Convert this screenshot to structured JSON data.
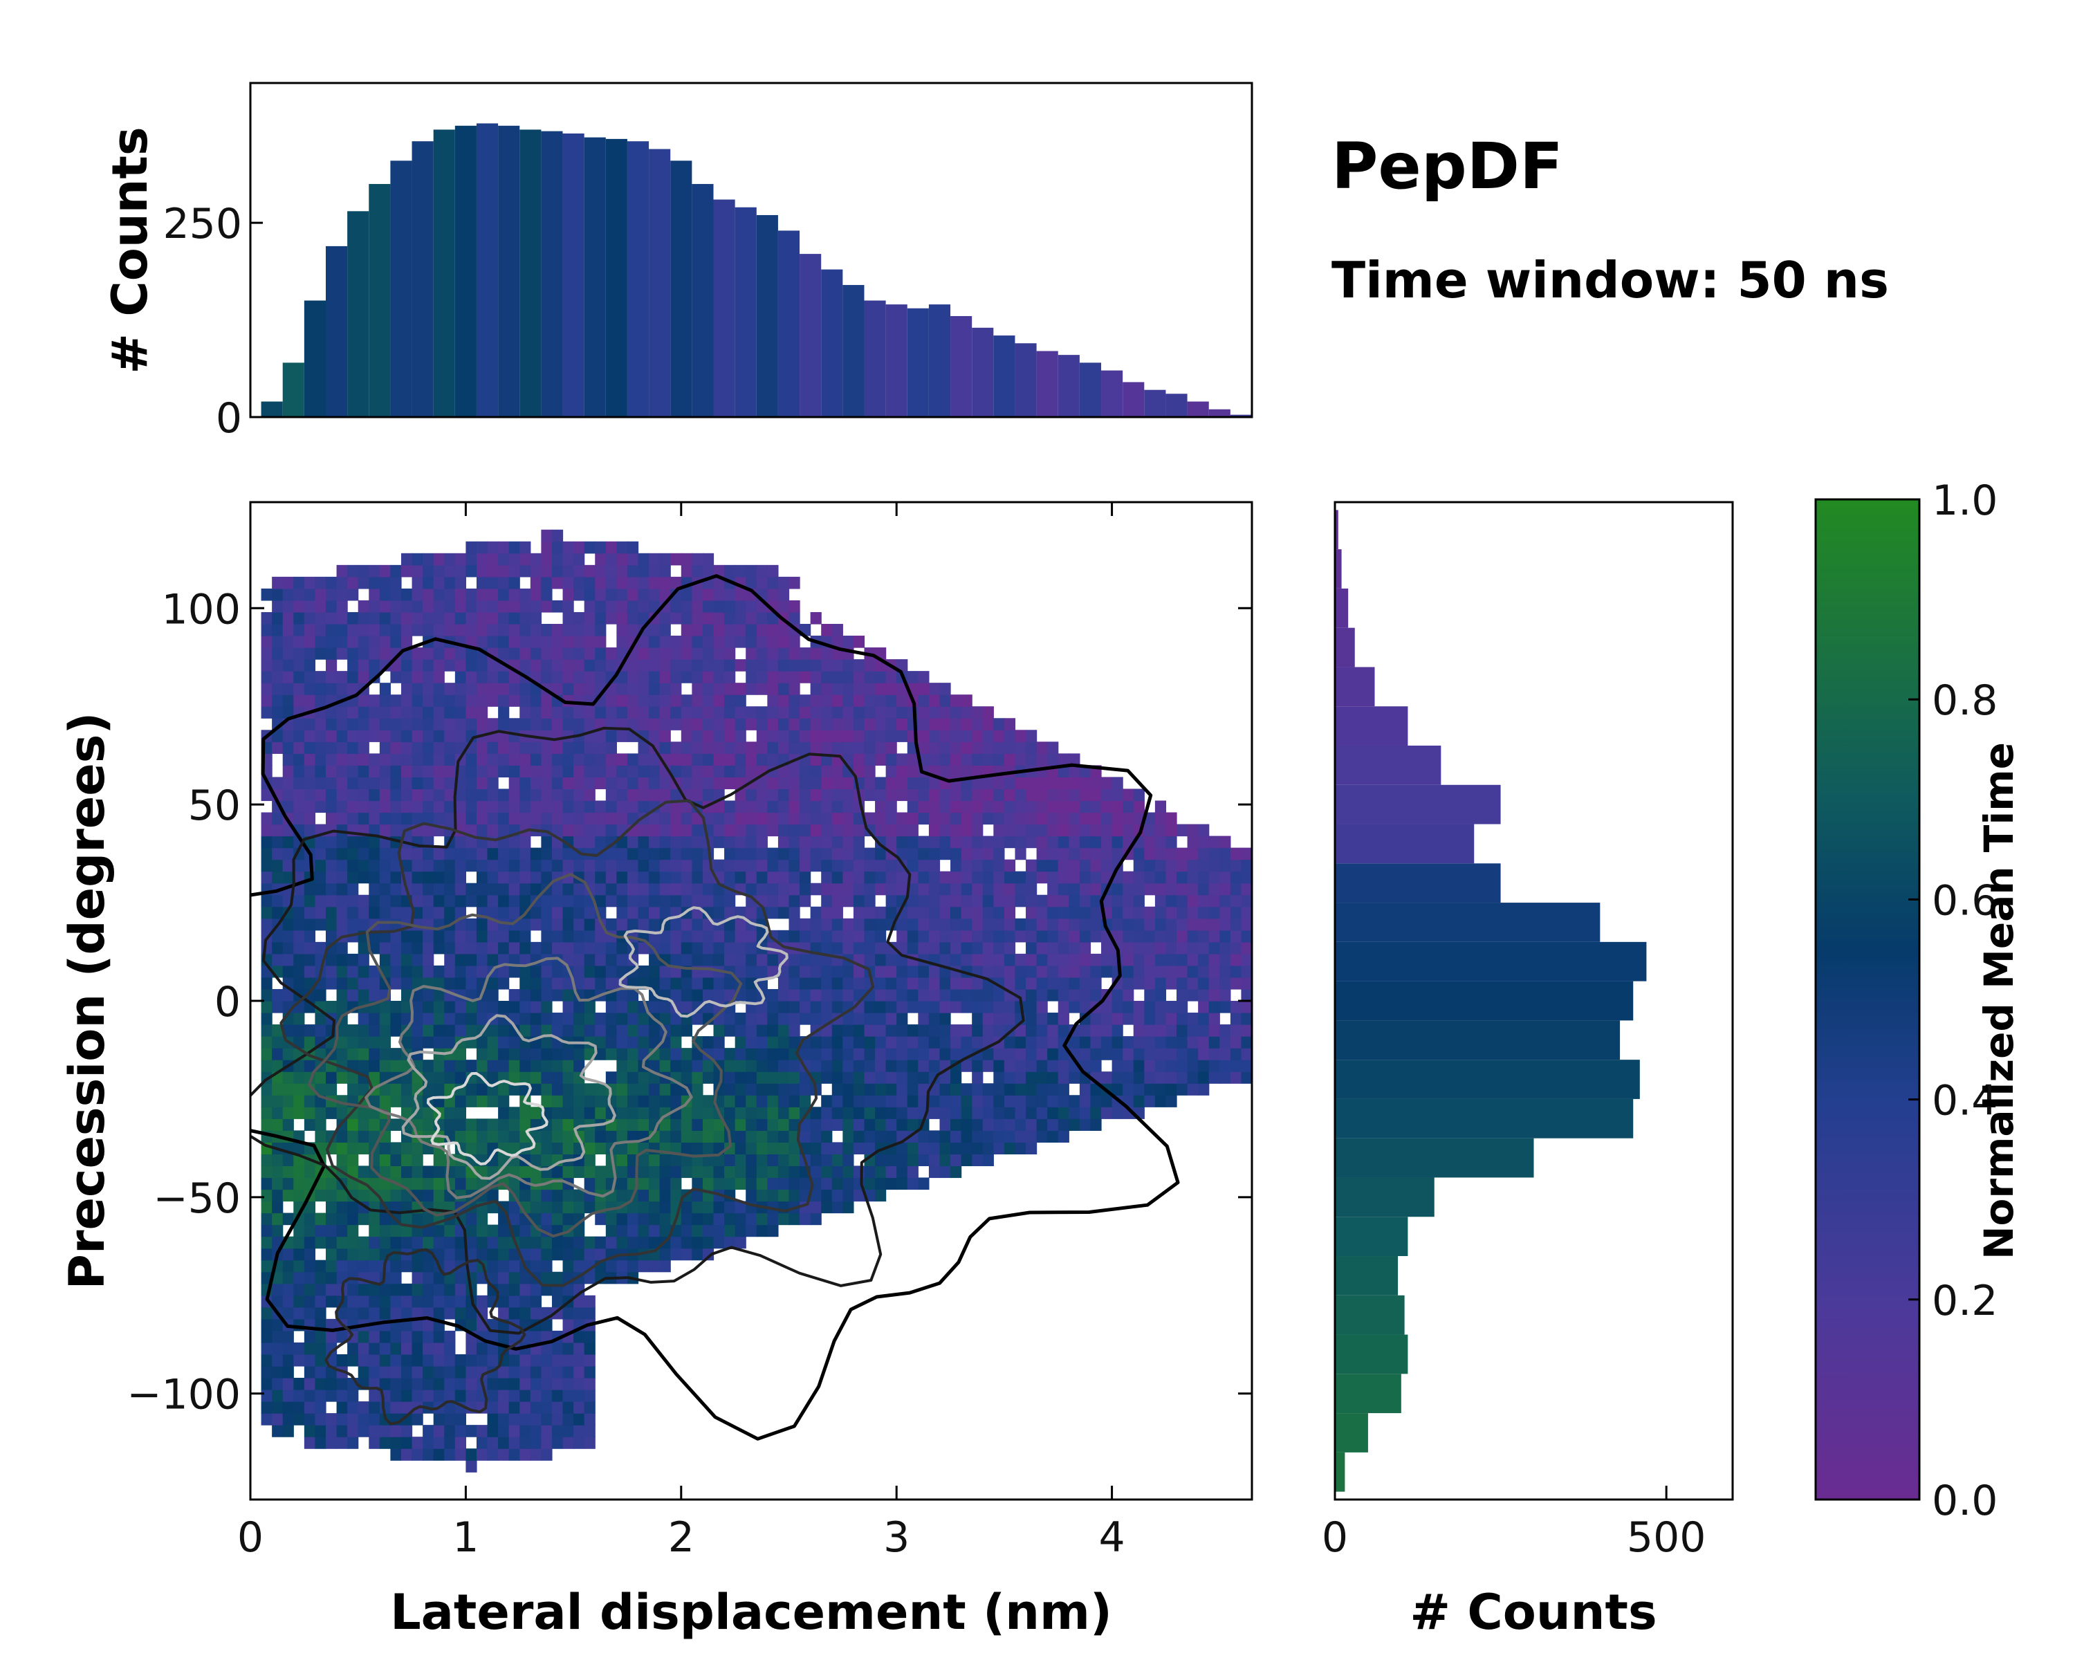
{
  "figure": {
    "title": "PepDF",
    "subtitle": "Time window: 50 ns"
  },
  "chart_data": [
    {
      "id": "main",
      "type": "heatmap",
      "xlabel": "Lateral displacement (nm)",
      "ylabel": "Precession (degrees)",
      "xlim": [
        0,
        4.65
      ],
      "ylim": [
        -127,
        127
      ],
      "xticks": [
        "0",
        "1",
        "2",
        "3",
        "4"
      ],
      "xtick_values": [
        0,
        1,
        2,
        3,
        4
      ],
      "yticks": [
        "−100",
        "−50",
        "0",
        "50",
        "100"
      ],
      "ytick_values": [
        -100,
        -50,
        0,
        50,
        100
      ],
      "color_by": "Normalized Mean Time",
      "overlay": "density contours (black → white with increasing density)"
    },
    {
      "id": "top-histogram",
      "type": "bar",
      "ylabel": "# Counts",
      "xlim": [
        0,
        4.65
      ],
      "ylim": [
        0,
        430
      ],
      "yticks": [
        "0",
        "250"
      ],
      "ytick_values": [
        0,
        250
      ],
      "x": [
        0.1,
        0.2,
        0.3,
        0.4,
        0.5,
        0.6,
        0.7,
        0.8,
        0.9,
        1.0,
        1.1,
        1.2,
        1.3,
        1.4,
        1.5,
        1.6,
        1.7,
        1.8,
        1.9,
        2.0,
        2.1,
        2.2,
        2.3,
        2.4,
        2.5,
        2.6,
        2.7,
        2.8,
        2.9,
        3.0,
        3.1,
        3.2,
        3.3,
        3.4,
        3.5,
        3.6,
        3.7,
        3.8,
        3.9,
        4.0,
        4.1,
        4.2,
        4.3,
        4.4,
        4.5,
        4.6
      ],
      "values": [
        20,
        70,
        150,
        220,
        265,
        300,
        330,
        355,
        370,
        375,
        378,
        375,
        370,
        368,
        365,
        360,
        358,
        355,
        345,
        330,
        300,
        280,
        270,
        260,
        240,
        210,
        190,
        170,
        150,
        145,
        140,
        145,
        130,
        115,
        105,
        95,
        85,
        80,
        70,
        60,
        45,
        35,
        30,
        20,
        10,
        3
      ]
    },
    {
      "id": "right-histogram",
      "type": "bar",
      "orientation": "horizontal",
      "xlabel": "# Counts",
      "xlim": [
        0,
        600
      ],
      "xticks": [
        "0",
        "500"
      ],
      "xtick_values": [
        0,
        500
      ],
      "ylim": [
        -127,
        127
      ],
      "y": [
        -120,
        -110,
        -100,
        -90,
        -80,
        -70,
        -60,
        -50,
        -40,
        -30,
        -20,
        -10,
        0,
        10,
        20,
        30,
        40,
        50,
        60,
        70,
        80,
        90,
        100,
        110,
        120
      ],
      "values": [
        15,
        50,
        100,
        110,
        105,
        95,
        110,
        150,
        300,
        450,
        460,
        430,
        450,
        470,
        400,
        250,
        210,
        250,
        160,
        110,
        60,
        30,
        20,
        10,
        5
      ]
    },
    {
      "id": "colorbar",
      "type": "colorbar",
      "label": "Normalized Mean Time",
      "range": [
        0,
        1
      ],
      "ticks": [
        "0.0",
        "0.2",
        "0.4",
        "0.6",
        "0.8",
        "1.0"
      ],
      "tick_values": [
        0,
        0.2,
        0.4,
        0.6,
        0.8,
        1.0
      ],
      "colors": {
        "low": "#6a2c91",
        "mid": "#063b6b",
        "high": "#228a22"
      }
    }
  ]
}
